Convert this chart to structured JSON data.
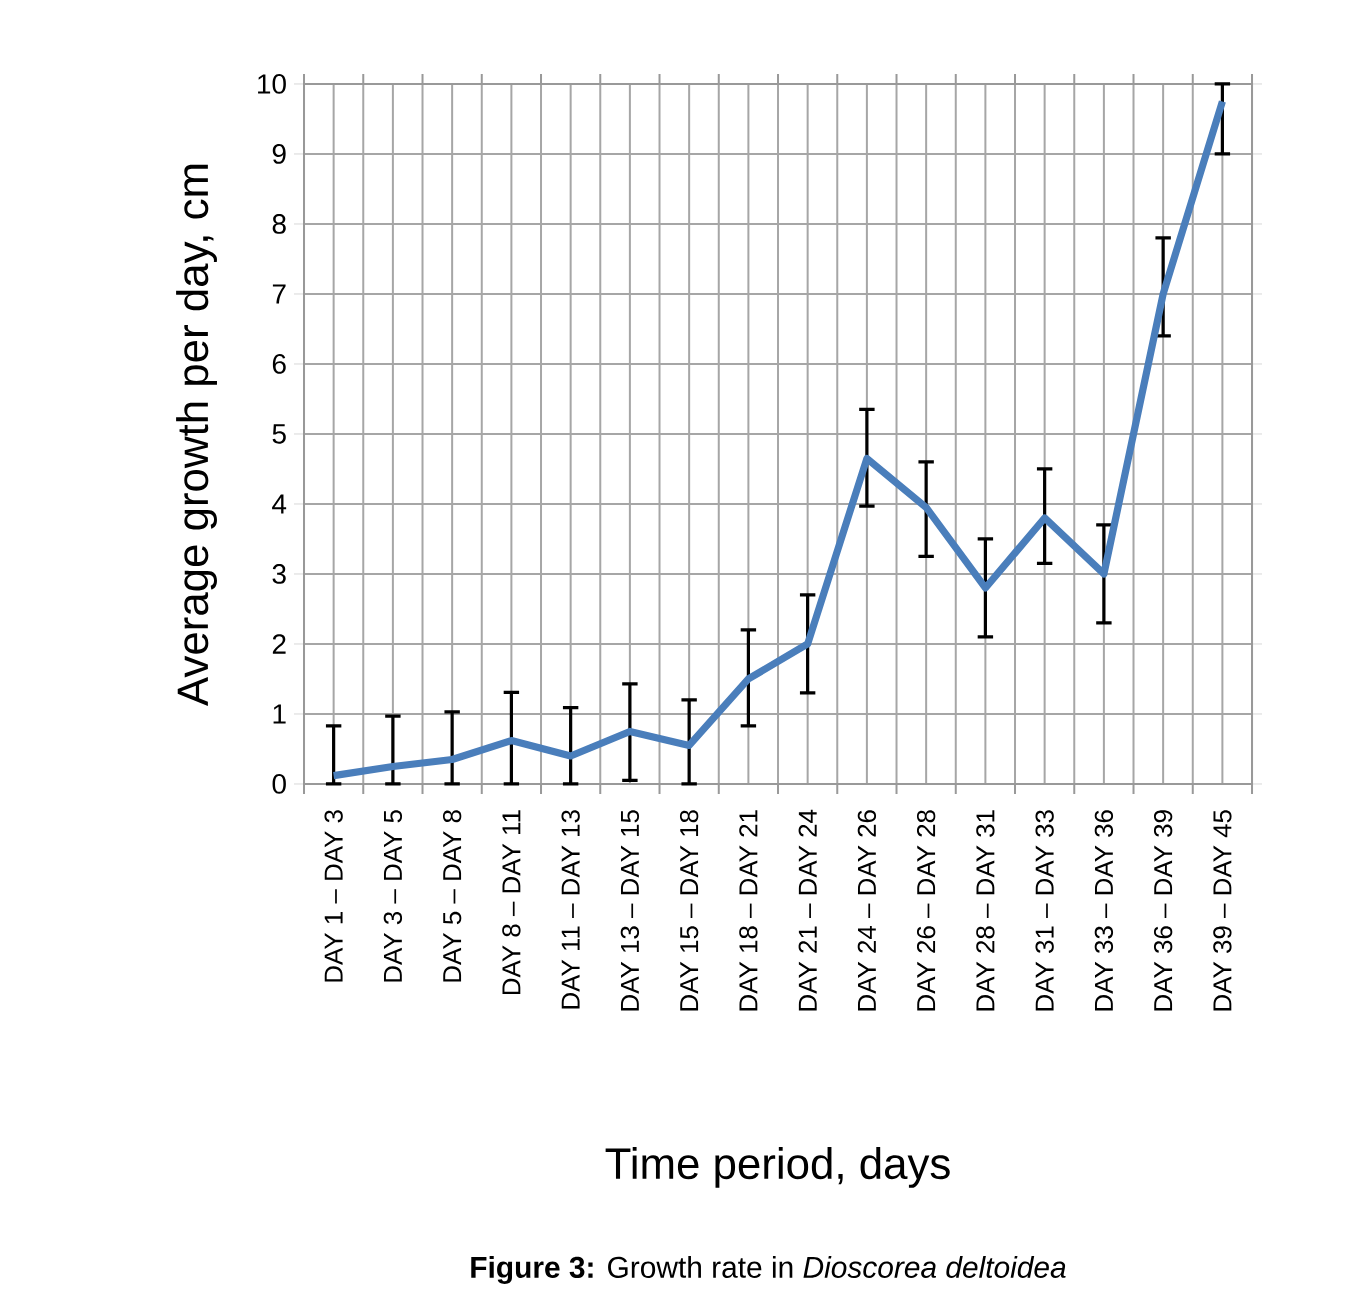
{
  "chart_data": {
    "type": "line",
    "xlabel": "Time period, days",
    "ylabel": "Average growth per day, cm",
    "annotations": [
      "**Figure 3:** Growth rate in *Dioscorea deltoidea*"
    ],
    "categories": [
      "DAY 1 – DAY 3",
      "DAY 3 – DAY 5",
      "DAY 5 – DAY 8",
      "DAY 8 – DAY 11",
      "DAY 11 – DAY 13",
      "DAY 13 – DAY 15",
      "DAY 15 – DAY 18",
      "DAY 18 – DAY 21",
      "DAY 21 – DAY 24",
      "DAY 24 – DAY 26",
      "DAY 26 – DAY 28",
      "DAY 28 – DAY 31",
      "DAY 31 – DAY 33",
      "DAY 33 – DAY 36",
      "DAY 36 – DAY 39",
      "DAY 39 – DAY 45"
    ],
    "series": [
      {
        "color": "#4a7ebb",
        "values": [
          0.12,
          0.25,
          0.35,
          0.62,
          0.4,
          0.75,
          0.55,
          1.5,
          2.0,
          4.65,
          3.95,
          2.8,
          3.8,
          3.0,
          7.0,
          9.75
        ],
        "errors": [
          [
            0,
            0.83
          ],
          [
            0,
            0.97
          ],
          [
            0,
            1.03
          ],
          [
            0,
            1.31
          ],
          [
            0,
            1.09
          ],
          [
            0.05,
            1.43
          ],
          [
            0,
            1.2
          ],
          [
            0.83,
            2.2
          ],
          [
            1.3,
            2.7
          ],
          [
            3.97,
            5.35
          ],
          [
            3.25,
            4.6
          ],
          [
            2.1,
            3.5
          ],
          [
            3.15,
            4.5
          ],
          [
            2.3,
            3.7
          ],
          [
            6.4,
            7.8
          ],
          [
            9.0,
            10
          ]
        ]
      }
    ],
    "ylim": [
      0,
      10
    ],
    "yticks": [
      0,
      1,
      2,
      3,
      4,
      5,
      6,
      7,
      8,
      9,
      10
    ],
    "grid": true,
    "marker": "none",
    "line_style": "solid"
  }
}
